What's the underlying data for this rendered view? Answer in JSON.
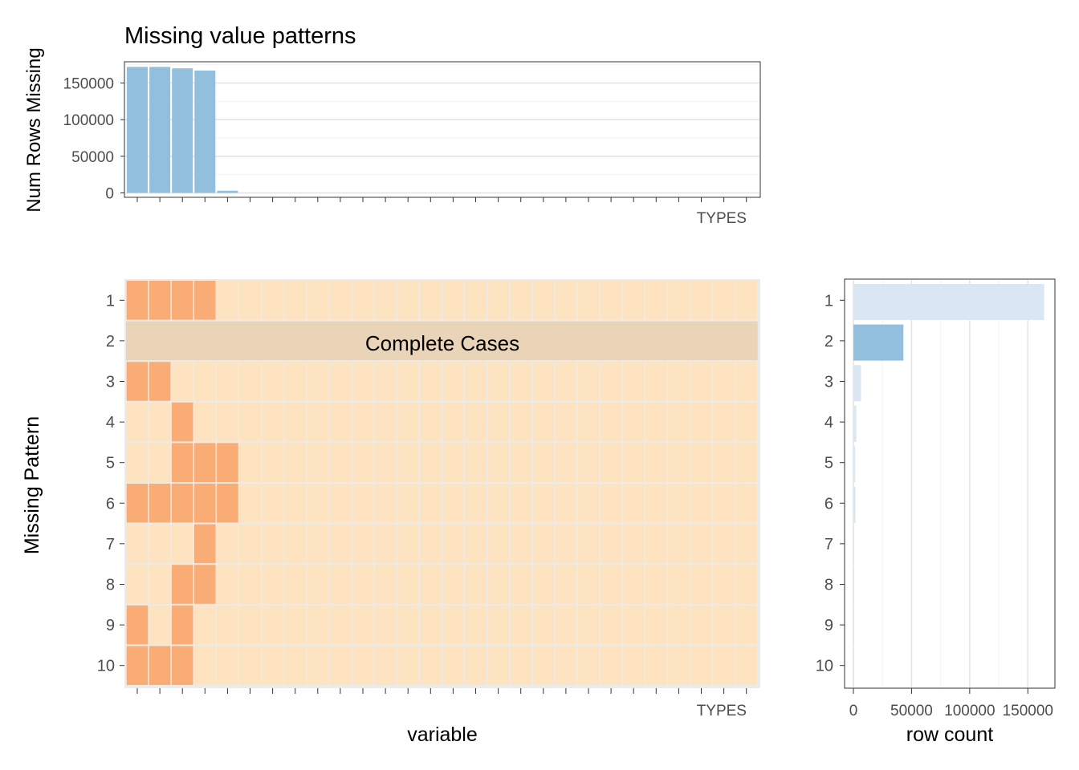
{
  "chart_data": [
    {
      "type": "bar",
      "title": "Missing value patterns",
      "ylabel": "Num Rows Missing",
      "xlabel": "",
      "ylim": [
        0,
        175000
      ],
      "yticks": [
        0,
        50000,
        100000,
        150000
      ],
      "grid": true,
      "bar_color": "#93bfde",
      "values": [
        172000,
        172000,
        170000,
        167000,
        3000,
        0,
        0,
        0,
        0,
        0,
        0,
        0,
        0,
        0,
        0,
        0,
        0,
        0,
        0,
        0,
        0,
        0,
        0,
        0,
        0,
        0,
        0,
        0
      ]
    },
    {
      "type": "heatmap",
      "xlabel": "variable",
      "ylabel": "Missing Pattern",
      "row_labels": [
        "1",
        "2",
        "3",
        "4",
        "5",
        "6",
        "7",
        "8",
        "9",
        "10"
      ],
      "complete_cases_row": 2,
      "annotation": "Complete Cases",
      "colors": {
        "missing": "#f9ad74",
        "present": "#fde3bf",
        "complete": "#e9d4b7"
      },
      "missing_columns": [
        [
          1,
          2,
          3,
          4
        ],
        [],
        [
          1,
          2
        ],
        [
          3
        ],
        [
          3,
          4,
          5
        ],
        [
          1,
          2,
          3,
          4,
          5
        ],
        [
          4
        ],
        [
          3,
          4
        ],
        [
          1,
          3
        ],
        [
          1,
          2,
          3
        ]
      ]
    },
    {
      "type": "bar",
      "orientation": "horizontal",
      "xlabel": "row count",
      "ylabel": "",
      "categories": [
        "1",
        "2",
        "3",
        "4",
        "5",
        "6",
        "7",
        "8",
        "9",
        "10"
      ],
      "xticks": [
        0,
        50000,
        100000,
        150000
      ],
      "xticklabels": [
        "0",
        "50000",
        "100000",
        "150000"
      ],
      "xlim": [
        0,
        165000
      ],
      "values": [
        164000,
        43000,
        6500,
        2500,
        1500,
        1800,
        300,
        300,
        300,
        300
      ],
      "colors": {
        "default": "#d9e6f4",
        "complete": "#93bfde"
      },
      "highlight_row": 2
    }
  ],
  "x_axis_visible_label": "TYPES",
  "columns": 28
}
